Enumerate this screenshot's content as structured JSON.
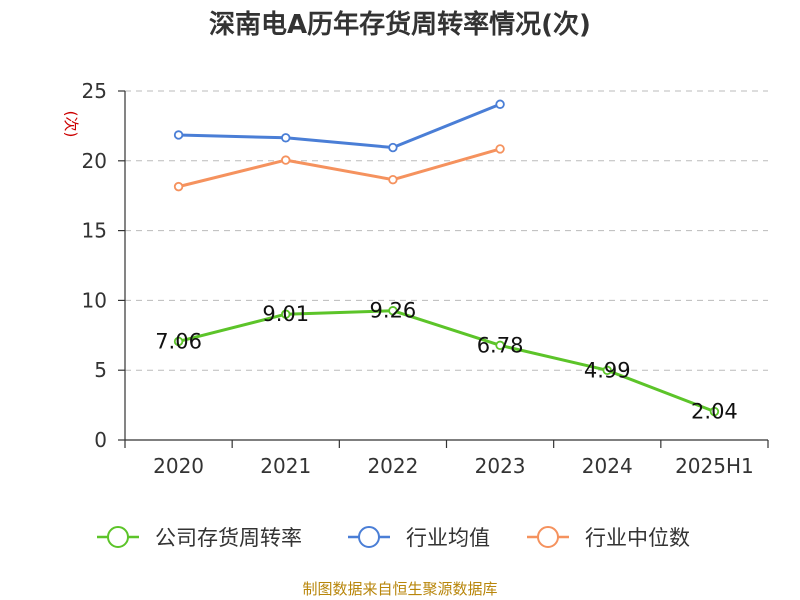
{
  "chart_data": {
    "type": "line",
    "title": "深南电A历年存货周转率情况(次)",
    "ylabel": "(次)",
    "categories": [
      "2020",
      "2021",
      "2022",
      "2023",
      "2024",
      "2025H1"
    ],
    "yticks": [
      "0",
      "5",
      "10",
      "15",
      "20",
      "25"
    ],
    "ylim": [
      0,
      25
    ],
    "grid": true,
    "legend_position": "bottom",
    "series": [
      {
        "name": "公司存货周转率",
        "color": "#5cc429",
        "values": [
          7.06,
          9.01,
          9.26,
          6.78,
          4.99,
          2.04
        ],
        "labels": [
          "7.06",
          "9.01",
          "9.26",
          "6.78",
          "4.99",
          "2.04"
        ]
      },
      {
        "name": "行业均值",
        "color": "#4a7ed6",
        "values": [
          21.85,
          21.65,
          20.95,
          24.05,
          null,
          null
        ]
      },
      {
        "name": "行业中位数",
        "color": "#f5925e",
        "values": [
          18.15,
          20.05,
          18.65,
          20.85,
          null,
          null
        ]
      }
    ],
    "source": "制图数据来自恒生聚源数据库"
  }
}
